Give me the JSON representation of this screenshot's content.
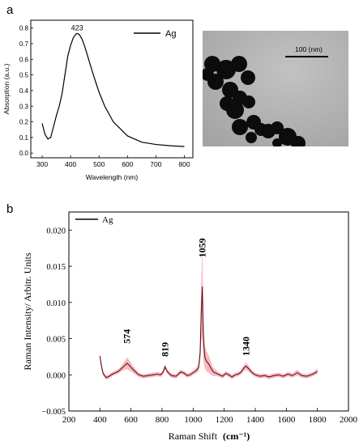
{
  "panel_labels": {
    "a": "a",
    "b": "b"
  },
  "chart_data": [
    {
      "type": "line",
      "panel": "a",
      "xlabel": "Wavelength (nm)",
      "ylabel": "Absorption (a.u.)",
      "xlim": [
        260,
        830
      ],
      "ylim": [
        -0.03,
        0.85
      ],
      "xticks": [
        300,
        400,
        500,
        600,
        700,
        800
      ],
      "yticks": [
        0.0,
        0.1,
        0.2,
        0.3,
        0.4,
        0.5,
        0.6,
        0.7,
        0.8
      ],
      "ytick_labels": [
        "0.0",
        "0.1",
        "0.2",
        "0.3",
        "0.4",
        "0.5",
        "0.6",
        "0.7",
        "0.8"
      ],
      "legend": {
        "label": "Ag",
        "placement": "top-right"
      },
      "annotations": [
        {
          "text": "423",
          "x": 423,
          "y": 0.765
        }
      ],
      "series": [
        {
          "x": [
            300,
            310,
            320,
            330,
            340,
            350,
            360,
            370,
            380,
            390,
            400,
            410,
            420,
            423,
            430,
            440,
            450,
            460,
            480,
            500,
            520,
            550,
            600,
            650,
            700,
            750,
            800
          ],
          "y": [
            0.19,
            0.12,
            0.09,
            0.1,
            0.17,
            0.24,
            0.3,
            0.38,
            0.5,
            0.62,
            0.69,
            0.74,
            0.763,
            0.765,
            0.76,
            0.73,
            0.68,
            0.62,
            0.5,
            0.39,
            0.3,
            0.2,
            0.11,
            0.07,
            0.055,
            0.047,
            0.042
          ]
        }
      ]
    },
    {
      "type": "line",
      "panel": "b",
      "xlabel": "Raman Shift",
      "xunit": "(cm⁻¹)",
      "ylabel": "Raman Intensity/ Arbitr. Units",
      "xlim": [
        200,
        2000
      ],
      "ylim": [
        -0.005,
        0.0225
      ],
      "xticks": [
        200,
        400,
        600,
        800,
        1000,
        1200,
        1400,
        1600,
        1800,
        2000
      ],
      "yticks": [
        -0.005,
        0.0,
        0.005,
        0.01,
        0.015,
        0.02
      ],
      "ytick_labels": [
        "−0.005",
        "0.000",
        "0.005",
        "0.010",
        "0.015",
        "0.020"
      ],
      "legend": {
        "label": "Ag",
        "placement": "top-left"
      },
      "annotations": [
        {
          "text": "574",
          "x": 574,
          "y": 0.0043
        },
        {
          "text": "819",
          "x": 819,
          "y": 0.0025
        },
        {
          "text": "1059",
          "x": 1059,
          "y": 0.0162
        },
        {
          "text": "1340",
          "x": 1340,
          "y": 0.0026
        }
      ],
      "series": [
        {
          "x": [
            400,
            410,
            420,
            440,
            460,
            480,
            500,
            520,
            540,
            560,
            574,
            590,
            610,
            630,
            650,
            680,
            710,
            740,
            770,
            790,
            805,
            819,
            835,
            860,
            890,
            920,
            945,
            960,
            980,
            1000,
            1020,
            1035,
            1045,
            1052,
            1059,
            1066,
            1075,
            1085,
            1100,
            1115,
            1130,
            1150,
            1170,
            1190,
            1210,
            1230,
            1250,
            1270,
            1290,
            1310,
            1325,
            1340,
            1360,
            1380,
            1400,
            1430,
            1460,
            1490,
            1520,
            1550,
            1580,
            1610,
            1640,
            1670,
            1700,
            1730,
            1760,
            1780,
            1800
          ],
          "y": [
            0.0026,
            0.0012,
            0.0002,
            -0.0004,
            -0.0002,
            0.0001,
            0.0003,
            0.0005,
            0.0009,
            0.0013,
            0.0016,
            0.0013,
            0.0008,
            0.0004,
            0.0,
            -0.0002,
            -0.0001,
            0.0,
            0.0001,
            0.0,
            0.0003,
            0.0011,
            0.0004,
            -0.0001,
            -0.0002,
            0.0004,
            0.0002,
            -0.0001,
            0.0,
            0.0003,
            0.0006,
            0.001,
            0.003,
            0.0085,
            0.0122,
            0.005,
            0.0025,
            0.0019,
            0.0015,
            0.0009,
            0.0004,
            0.0002,
            0.0,
            -0.0002,
            0.0002,
            0.0,
            -0.0003,
            0.0,
            0.0001,
            0.0004,
            0.0009,
            0.0012,
            0.0008,
            0.0003,
            0.0,
            -0.0002,
            -0.0001,
            -0.0003,
            -0.0001,
            0.0,
            -0.0002,
            0.0001,
            -0.0001,
            0.0003,
            -0.0001,
            -0.0002,
            0.0,
            0.0002,
            0.0005
          ],
          "band": [
            0.0004,
            0.0004,
            0.0003,
            0.0003,
            0.0003,
            0.0003,
            0.0003,
            0.0003,
            0.0004,
            0.0006,
            0.0008,
            0.0007,
            0.0005,
            0.0004,
            0.0003,
            0.0003,
            0.0003,
            0.0003,
            0.0003,
            0.0003,
            0.0003,
            0.0004,
            0.0003,
            0.0003,
            0.0003,
            0.0003,
            0.0003,
            0.0003,
            0.0003,
            0.0003,
            0.0004,
            0.0005,
            0.0012,
            0.004,
            0.0065,
            0.003,
            0.0016,
            0.0014,
            0.0012,
            0.0009,
            0.0006,
            0.0004,
            0.0003,
            0.0003,
            0.0003,
            0.0003,
            0.0003,
            0.0003,
            0.0003,
            0.0003,
            0.0004,
            0.0005,
            0.0004,
            0.0003,
            0.0003,
            0.0003,
            0.0003,
            0.0003,
            0.0003,
            0.0003,
            0.0003,
            0.0003,
            0.0003,
            0.0004,
            0.0003,
            0.0003,
            0.0003,
            0.0003,
            0.0004
          ]
        }
      ]
    }
  ],
  "micrograph": {
    "scale_bar_label": "100 (nm)"
  }
}
